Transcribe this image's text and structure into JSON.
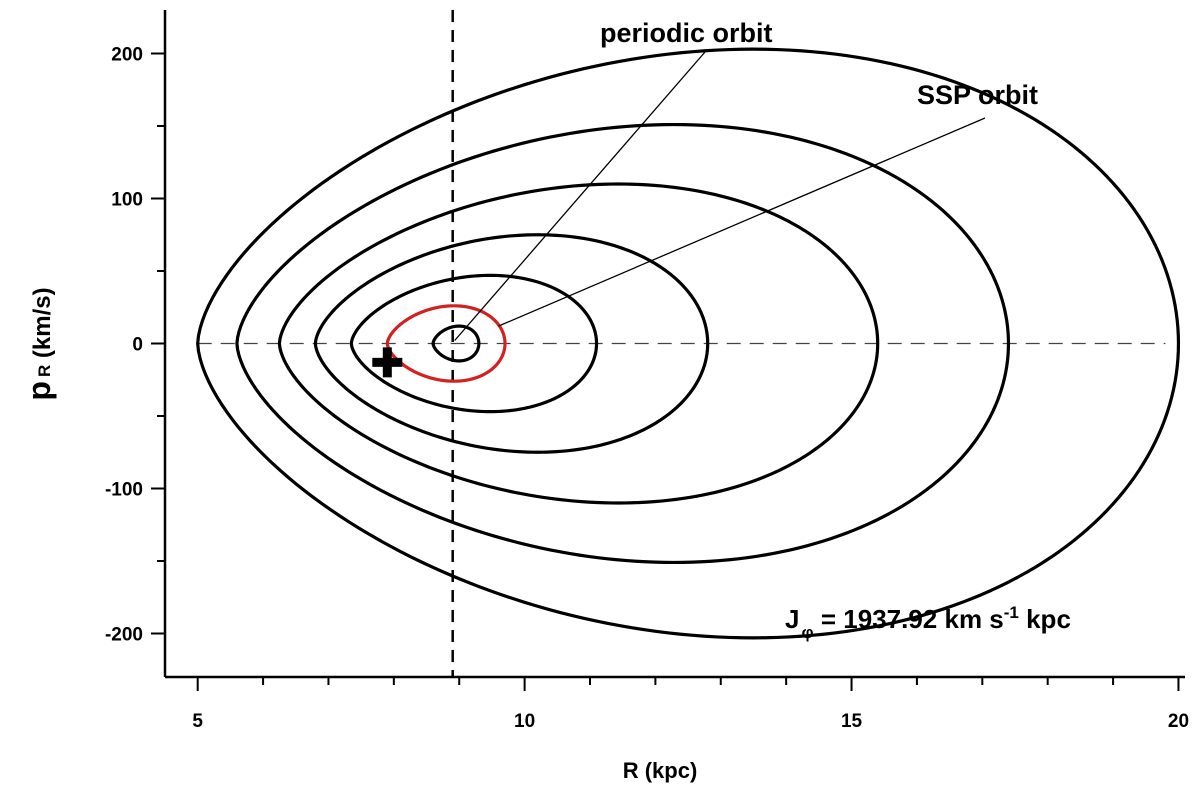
{
  "chart_data": {
    "type": "line",
    "title": "",
    "xlabel": "R (kpc)",
    "ylabel": {
      "main": "p",
      "subscript": "R",
      "rest": " (km/s)"
    },
    "xlim": [
      4.5,
      20.1
    ],
    "ylim": [
      -230,
      230
    ],
    "x_ticks": [
      5,
      10,
      15,
      20
    ],
    "y_ticks": [
      200,
      100,
      0,
      -100,
      -200
    ],
    "x_tick_labels": [
      "5",
      "10",
      "15",
      "20"
    ],
    "y_tick_labels": [
      "200",
      "100",
      "0",
      "-100",
      "-200"
    ],
    "x_minor_step": 1,
    "y_minor_step": 50,
    "grid": false,
    "vertical_reference_line_x": 8.9,
    "horizontal_reference_line_y": 0,
    "series": [
      {
        "color": "#000000",
        "x_left": 8.6,
        "x_right": 9.3,
        "p_max": 12
      },
      {
        "color": "#000000",
        "x_left": 7.35,
        "x_right": 11.1,
        "p_max": 47
      },
      {
        "color": "#000000",
        "x_left": 6.8,
        "x_right": 12.8,
        "p_max": 75
      },
      {
        "color": "#000000",
        "x_left": 6.25,
        "x_right": 15.4,
        "p_max": 110
      },
      {
        "color": "#000000",
        "x_left": 5.6,
        "x_right": 17.4,
        "p_max": 151
      },
      {
        "color": "#000000",
        "x_left": 5.0,
        "x_right": 20.0,
        "p_max": 203
      },
      {
        "color": "#d42020",
        "x_left": 7.9,
        "x_right": 9.7,
        "p_max": 26
      }
    ],
    "markers": [
      {
        "label": "+",
        "x": 7.9,
        "y": -13
      }
    ],
    "annotations": [
      {
        "text": "periodic orbit",
        "points_to": [
          8.9,
          0
        ]
      },
      {
        "text": "SSP orbit",
        "points_to": [
          9.6,
          12
        ]
      }
    ],
    "inset_text": {
      "J": "J",
      "J_sub": "φ",
      "eq_value": " = 1937.92 km s",
      "sup": "-1",
      "unit": " kpc"
    }
  }
}
